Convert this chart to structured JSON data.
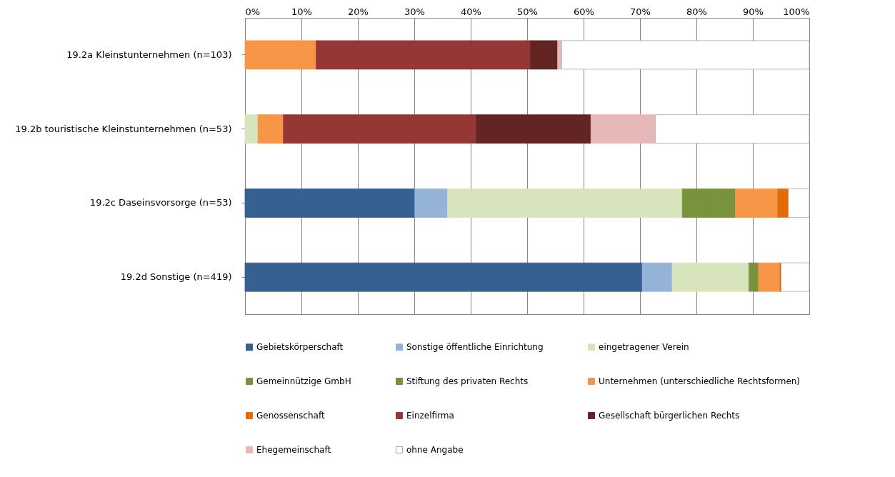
{
  "chart_data": {
    "type": "bar",
    "orientation": "horizontal",
    "stacked": true,
    "categories": [
      "19.2a Kleinstunternehmen (n=103)",
      "19.2b touristische Kleinstunternehmen (n=53)",
      "19.2c Daseinsvorsorge (n=53)",
      "19.2d Sonstige (n=419)"
    ],
    "series": [
      {
        "name": "Gebietskörperschaft",
        "color": "#366092",
        "values": [
          null,
          null,
          30.1,
          70.4
        ]
      },
      {
        "name": "Sonstige öffentliche Einrichtung",
        "color": "#95b3d7",
        "values": [
          null,
          null,
          5.8,
          5.3
        ]
      },
      {
        "name": "eingetragener Verein",
        "color": "#d8e4bc",
        "values": [
          null,
          2.3,
          41.6,
          13.6
        ]
      },
      {
        "name": "Gemeinnützige GmbH",
        "color": "#77933c",
        "values": [
          null,
          null,
          5.5,
          0.8
        ]
      },
      {
        "name": "Stiftung des privaten Rechts",
        "color": "#77933c",
        "values": [
          null,
          null,
          3.9,
          0.9
        ]
      },
      {
        "name": "Unternehmen (unterschiedliche Rechtsformen)",
        "color": "#f79646",
        "values": [
          12.6,
          4.5,
          7.5,
          3.8
        ]
      },
      {
        "name": "Genossenschaft",
        "color": "#e36c09",
        "values": [
          null,
          null,
          1.9,
          0.2
        ]
      },
      {
        "name": "Einzelfirma",
        "color": "#953735",
        "values": [
          38.0,
          34.2,
          null,
          null
        ]
      },
      {
        "name": "Gesellschaft bürgerlichen Rechts",
        "color": "#632523",
        "values": [
          4.8,
          20.3,
          null,
          null
        ]
      },
      {
        "name": "Ehegemeinschaft",
        "color": "#e6b9b8",
        "values": [
          0.7,
          11.4,
          null,
          null
        ]
      },
      {
        "name": "ohne Angabe",
        "color": "#ffffff",
        "values": [
          43.9,
          27.3,
          3.7,
          5.0
        ]
      }
    ],
    "xlim": [
      0,
      100
    ],
    "xticks": [
      {
        "value": 0,
        "label": "0%"
      },
      {
        "value": 10,
        "label": "10%"
      },
      {
        "value": 20,
        "label": "20%"
      },
      {
        "value": 30,
        "label": "30%"
      },
      {
        "value": 40,
        "label": "40%"
      },
      {
        "value": 50,
        "label": "50%"
      },
      {
        "value": 60,
        "label": "60%"
      },
      {
        "value": 70,
        "label": "70%"
      },
      {
        "value": 80,
        "label": "80%"
      },
      {
        "value": 90,
        "label": "90%"
      },
      {
        "value": 100,
        "label": "100%"
      }
    ],
    "grid": "x",
    "legend": "bottom"
  }
}
